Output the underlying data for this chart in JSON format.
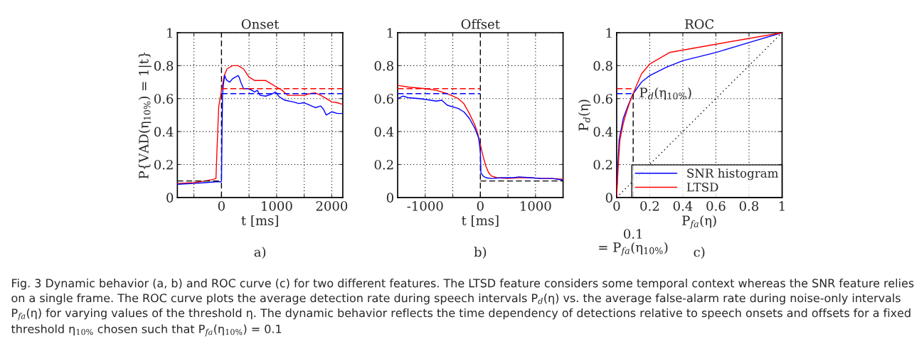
{
  "chart_data": [
    {
      "type": "line",
      "title": "Onset",
      "xlabel": "t [ms]",
      "ylabel": "P{VAD(η$_{10%}$) = 1|t}",
      "xlim": [
        -800,
        2200
      ],
      "ylim": [
        0,
        1
      ],
      "xticks": [
        {
          "value": -500,
          "label": null
        },
        0,
        {
          "value": 500,
          "label": null
        },
        1000,
        {
          "value": 1500,
          "label": null
        },
        2000
      ],
      "yticks": [
        0,
        0.2,
        0.4,
        0.6,
        0.8,
        1
      ],
      "grid": true,
      "legend": false,
      "ref_lines": [
        {
          "axis": "x",
          "value": 0,
          "color": "#000000",
          "line_style": "dashed"
        }
      ],
      "series": [
        {
          "color": "#ff0000",
          "x": [
            -800,
            -500,
            -300,
            -150,
            -100,
            -80,
            -50,
            0,
            50,
            100,
            200,
            300,
            400,
            500,
            600,
            700,
            800,
            900,
            1000,
            1100,
            1200,
            1300,
            1400,
            1500,
            1600,
            1700,
            1800,
            1900,
            2000,
            2100,
            2200
          ],
          "values": [
            0.085,
            0.09,
            0.1,
            0.11,
            0.115,
            0.3,
            0.55,
            0.65,
            0.74,
            0.78,
            0.8,
            0.8,
            0.78,
            0.73,
            0.71,
            0.71,
            0.71,
            0.69,
            0.67,
            0.65,
            0.62,
            0.62,
            0.62,
            0.62,
            0.63,
            0.635,
            0.62,
            0.6,
            0.58,
            0.575,
            0.565
          ]
        },
        {
          "color": "#0000ff",
          "x": [
            -800,
            -500,
            -300,
            -100,
            -10,
            0,
            10,
            20,
            40,
            60,
            80,
            100,
            150,
            200,
            250,
            300,
            320,
            350,
            400,
            500,
            600,
            650,
            700,
            800,
            900,
            980,
            1050,
            1150,
            1300,
            1400,
            1500,
            1600,
            1700,
            1800,
            1850,
            1900,
            1950,
            2000,
            2100,
            2200
          ],
          "values": [
            0.08,
            0.085,
            0.09,
            0.095,
            0.095,
            0.1,
            0.4,
            0.63,
            0.7,
            0.74,
            0.72,
            0.71,
            0.7,
            0.72,
            0.73,
            0.74,
            0.73,
            0.7,
            0.66,
            0.66,
            0.64,
            0.65,
            0.62,
            0.615,
            0.625,
            0.64,
            0.61,
            0.59,
            0.58,
            0.57,
            0.575,
            0.56,
            0.545,
            0.555,
            0.535,
            0.5,
            0.51,
            0.52,
            0.51,
            0.51
          ]
        },
        {
          "color": "#ff0000",
          "line_style": "dashed",
          "x": [
            0,
            2200
          ],
          "values": [
            0.66,
            0.66
          ]
        },
        {
          "color": "#0000ff",
          "line_style": "dashed",
          "x": [
            0,
            2200
          ],
          "values": [
            0.63,
            0.63
          ]
        },
        {
          "color": "#000000",
          "line_style": "dashed",
          "x": [
            -800,
            0
          ],
          "values": [
            0.1,
            0.1
          ]
        }
      ],
      "annotations": [
        "a)",
        "Fig. 3 Dynamic behavior (a, b) and ROC curve (c) for two different features. The LTSD feature considers some temporal context whereas the SNR feature relies on a single frame. The ROC curve plots the average detection rate during speech intervals P$_{d}$(η) vs. the average false-alarm rate during noise-only intervals P$_{fa}$(η) for varying values of the threshold η. The dynamic behavior reflects the time dependency of detections relative to speech onsets and offsets for a fixed threshold η$_{10%}$ chosen such that P$_{fa}$(η$_{10%}$) = 0.1"
      ]
    },
    {
      "type": "line",
      "title": "Offset",
      "xlabel": "t [ms]",
      "xlim": [
        -1500,
        1500
      ],
      "ylim": [
        0,
        1
      ],
      "xticks": [
        -1000,
        {
          "value": -500,
          "label": null
        },
        0,
        {
          "value": 500,
          "label": null
        },
        1000
      ],
      "yticks": [
        0,
        0.2,
        0.4,
        0.6,
        0.8,
        1
      ],
      "grid": true,
      "legend": false,
      "ref_lines": [
        {
          "axis": "x",
          "value": 0,
          "color": "#000000",
          "line_style": "dashed"
        }
      ],
      "series": [
        {
          "color": "#ff0000",
          "x": [
            -1500,
            -1300,
            -1000,
            -800,
            -600,
            -400,
            -300,
            -200,
            -100,
            -50,
            0,
            50,
            100,
            150,
            200,
            300,
            500,
            700,
            900,
            1100,
            1300,
            1500
          ],
          "values": [
            0.68,
            0.67,
            0.66,
            0.65,
            0.63,
            0.6,
            0.57,
            0.51,
            0.44,
            0.39,
            0.32,
            0.25,
            0.19,
            0.15,
            0.13,
            0.12,
            0.115,
            0.12,
            0.12,
            0.115,
            0.115,
            0.11
          ]
        },
        {
          "color": "#0000ff",
          "x": [
            -1500,
            -1400,
            -1300,
            -1100,
            -900,
            -800,
            -700,
            -600,
            -400,
            -300,
            -200,
            -100,
            -30,
            0,
            10,
            50,
            100,
            200,
            400,
            600,
            700,
            900,
            1100,
            1300,
            1500
          ],
          "values": [
            0.6,
            0.615,
            0.605,
            0.6,
            0.59,
            0.585,
            0.59,
            0.56,
            0.54,
            0.52,
            0.48,
            0.42,
            0.36,
            0.28,
            0.15,
            0.13,
            0.12,
            0.115,
            0.12,
            0.12,
            0.125,
            0.12,
            0.115,
            0.115,
            0.105
          ]
        },
        {
          "color": "#ff0000",
          "line_style": "dashed",
          "x": [
            -1500,
            0
          ],
          "values": [
            0.66,
            0.66
          ]
        },
        {
          "color": "#0000ff",
          "line_style": "dashed",
          "x": [
            -1500,
            0
          ],
          "values": [
            0.63,
            0.63
          ]
        },
        {
          "color": "#000000",
          "line_style": "dashed",
          "x": [
            0,
            1500
          ],
          "values": [
            0.1,
            0.1
          ]
        }
      ],
      "annotations": [
        "b)"
      ]
    },
    {
      "type": "line",
      "title": "ROC",
      "xlabel": "P$_{fa}$(η)",
      "ylabel": "P$_{d}$(η)",
      "xlim": [
        0,
        1
      ],
      "ylim": [
        0,
        1
      ],
      "xticks": [
        0,
        0.2,
        0.4,
        0.6,
        0.8,
        1
      ],
      "yticks": [
        0,
        0.2,
        0.4,
        0.6,
        0.8,
        1
      ],
      "grid": true,
      "legend": "bottom right",
      "series": [
        {
          "name": "SNR histogram",
          "color": "#0000ff",
          "x": [
            0,
            0.005,
            0.015,
            0.04,
            0.07,
            0.1,
            0.15,
            0.2,
            0.3,
            0.4,
            0.6,
            0.8,
            1
          ],
          "values": [
            0,
            0.15,
            0.35,
            0.48,
            0.56,
            0.63,
            0.7,
            0.74,
            0.79,
            0.83,
            0.88,
            0.94,
            1
          ]
        },
        {
          "name": "LTSD",
          "color": "#ff0000",
          "x": [
            0,
            0.01,
            0.02,
            0.04,
            0.06,
            0.08,
            0.1,
            0.12,
            0.15,
            0.2,
            0.32,
            0.6,
            1
          ],
          "values": [
            0,
            0.2,
            0.35,
            0.45,
            0.52,
            0.58,
            0.63,
            0.68,
            0.75,
            0.81,
            0.88,
            0.93,
            1
          ]
        },
        {
          "color": "#000000",
          "line_style": "dotted",
          "x": [
            0,
            1
          ],
          "values": [
            0,
            1
          ]
        },
        {
          "color": "#000000",
          "line_style": "dashed",
          "x": [
            0.1,
            0.1
          ],
          "values": [
            0,
            0.63
          ]
        },
        {
          "color": "#ff0000",
          "line_style": "dashed",
          "x": [
            0,
            0.1
          ],
          "values": [
            0.66,
            0.66
          ]
        },
        {
          "color": "#0000ff",
          "line_style": "dashed",
          "x": [
            0,
            0.1
          ],
          "values": [
            0.63,
            0.63
          ]
        }
      ],
      "annotations": [
        "c)",
        "0.1\n= P$_{fa}$(η$_{10%}$)",
        {
          "text": "P$_{d}$(η$_{10%}$)",
          "x": 0.1,
          "y": 0.63
        }
      ]
    }
  ]
}
